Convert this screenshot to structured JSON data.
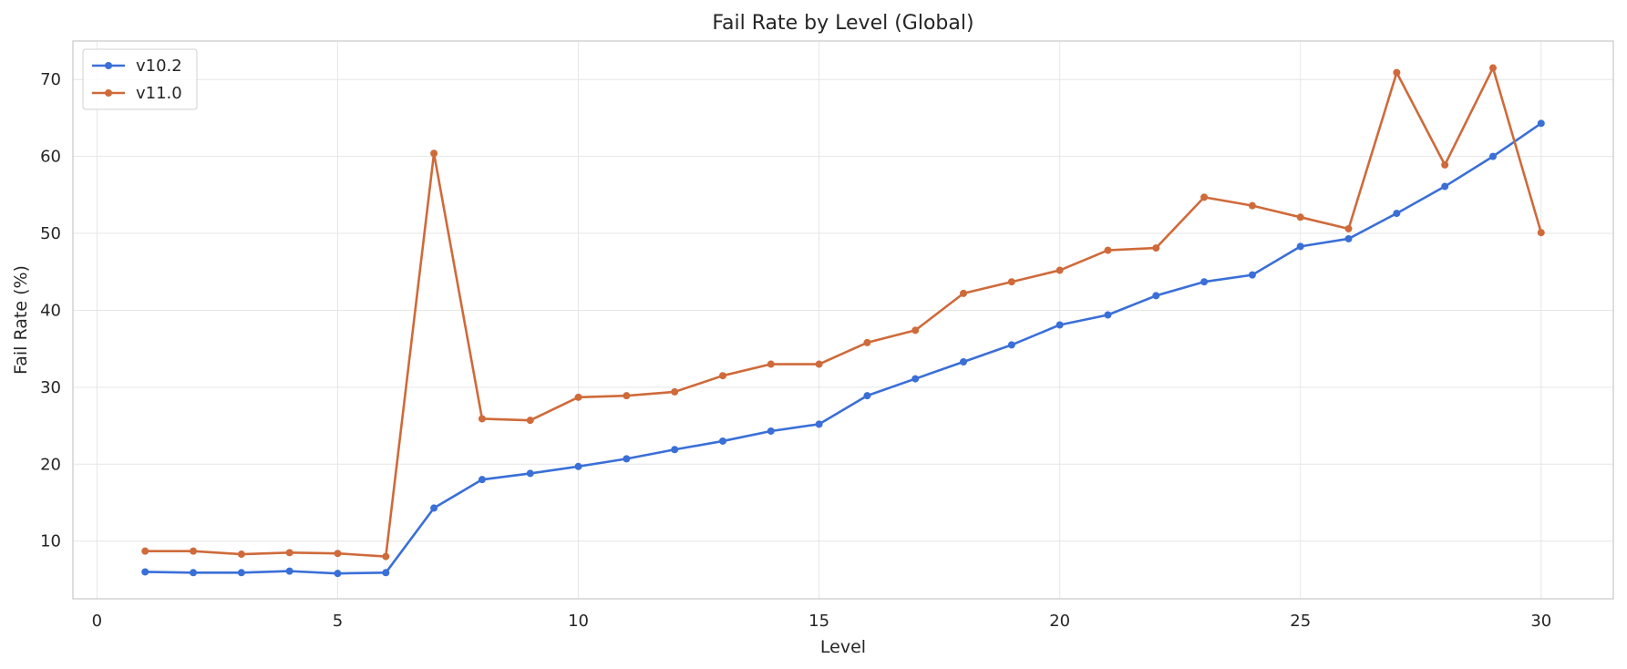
{
  "chart_data": {
    "type": "line",
    "title": "Fail Rate by Level (Global)",
    "xlabel": "Level",
    "ylabel": "Fail Rate (%)",
    "xlim": [
      -0.5,
      31.5
    ],
    "ylim": [
      2.5,
      75
    ],
    "xticks": [
      0,
      5,
      10,
      15,
      20,
      25,
      30
    ],
    "yticks": [
      10,
      20,
      30,
      40,
      50,
      60,
      70
    ],
    "grid": true,
    "legend_position": "top-left",
    "x": [
      1,
      2,
      3,
      4,
      5,
      6,
      7,
      8,
      9,
      10,
      11,
      12,
      13,
      14,
      15,
      16,
      17,
      18,
      19,
      20,
      21,
      22,
      23,
      24,
      25,
      26,
      27,
      28,
      29,
      30
    ],
    "series": [
      {
        "name": "v10.2",
        "color": "#3a6fd8",
        "values": [
          6.0,
          5.9,
          5.9,
          6.1,
          5.8,
          5.9,
          14.3,
          18.0,
          18.8,
          19.7,
          20.7,
          21.9,
          23.0,
          24.3,
          25.2,
          28.9,
          31.1,
          33.3,
          35.5,
          38.1,
          39.4,
          41.9,
          43.7,
          44.6,
          48.3,
          49.3,
          52.6,
          56.1,
          60.0,
          64.3
        ]
      },
      {
        "name": "v11.0",
        "color": "#cf6a3a",
        "values": [
          8.7,
          8.7,
          8.3,
          8.5,
          8.4,
          8.0,
          60.4,
          25.9,
          25.7,
          28.7,
          28.9,
          29.4,
          31.5,
          33.0,
          33.0,
          35.8,
          37.4,
          42.2,
          43.7,
          45.2,
          47.8,
          48.1,
          54.7,
          53.6,
          52.1,
          50.6,
          70.9,
          58.9,
          71.5,
          50.1
        ]
      }
    ]
  }
}
